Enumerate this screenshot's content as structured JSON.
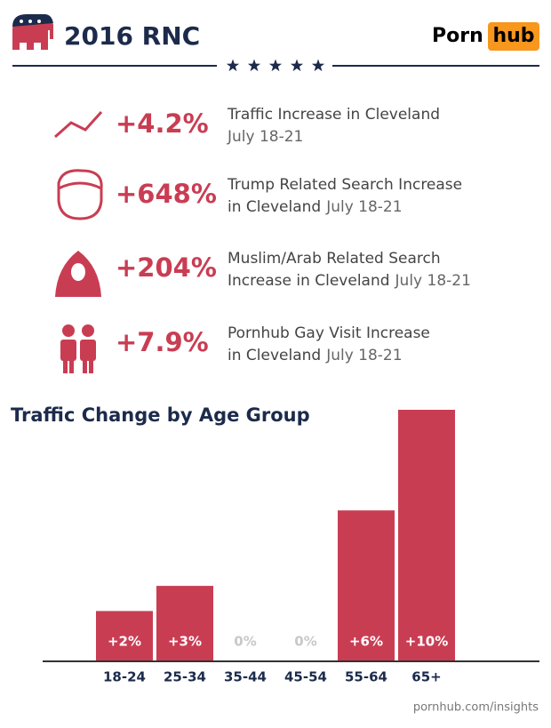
{
  "header": {
    "title": "2016 RNC",
    "logo_left": "Porn",
    "logo_right": "hub"
  },
  "stats": [
    {
      "value": "+4.2%",
      "label_lines": [
        "Traffic Increase in Cleveland"
      ],
      "date": "July 18-21"
    },
    {
      "value": "+648%",
      "label_lines": [
        "Trump Related Search Increase",
        "in Cleveland"
      ],
      "date": "July 18-21"
    },
    {
      "value": "+204%",
      "label_lines": [
        "Muslim/Arab Related Search",
        "Increase in Cleveland"
      ],
      "date": "July 18-21"
    },
    {
      "value": "+7.9%",
      "label_lines": [
        "Pornhub Gay Visit Increase",
        "in Cleveland"
      ],
      "date": "July 18-21"
    }
  ],
  "chart_data": {
    "type": "bar",
    "title": "Traffic Change by Age Group",
    "categories": [
      "18-24",
      "25-34",
      "35-44",
      "45-54",
      "55-64",
      "65+"
    ],
    "values": [
      2,
      3,
      0,
      0,
      6,
      10
    ],
    "value_labels": [
      "+2%",
      "+3%",
      "0%",
      "0%",
      "+6%",
      "+10%"
    ],
    "color": "#c93d53"
  },
  "footer": "pornhub.com/insights"
}
